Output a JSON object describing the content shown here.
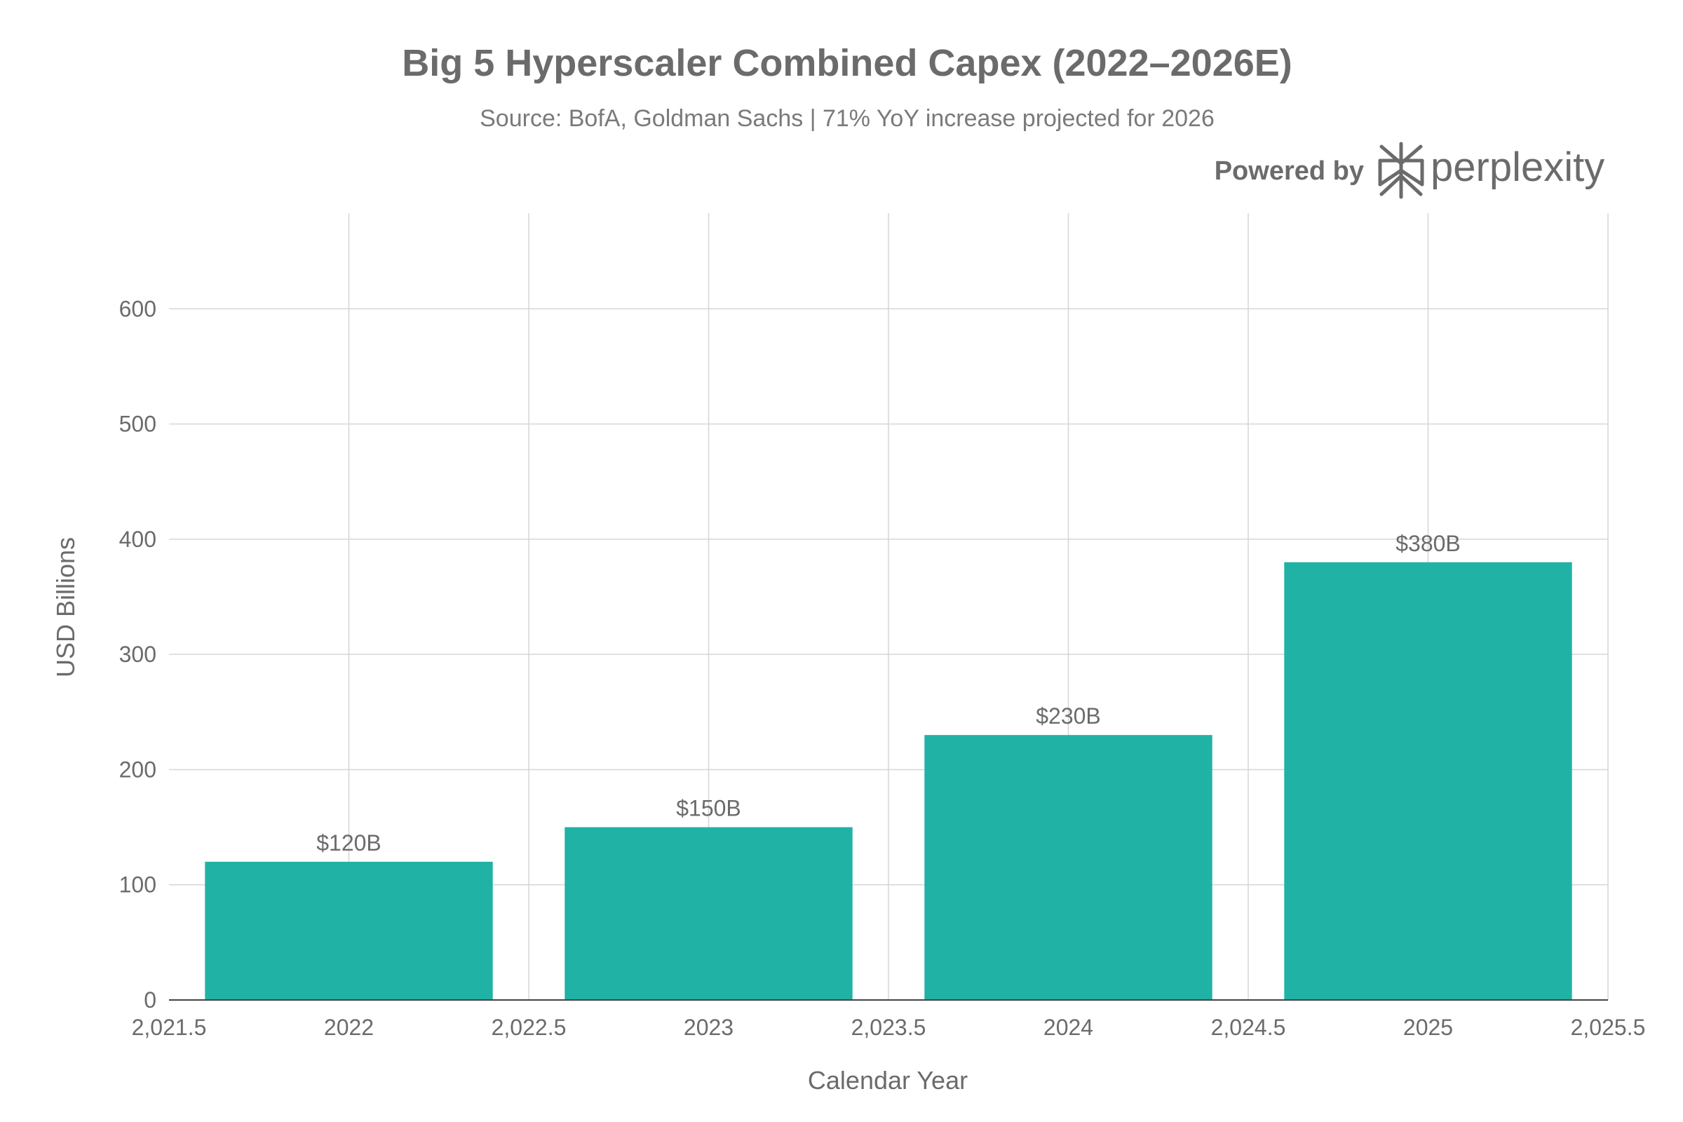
{
  "chart_data": {
    "type": "bar",
    "title": "Big 5 Hyperscaler Combined Capex (2022–2026E)",
    "subtitle": "Source: BofA, Goldman Sachs | 71% YoY increase projected for 2026",
    "xlabel": "Calendar Year",
    "ylabel": "USD Billions",
    "x": [
      2022,
      2023,
      2024,
      2025
    ],
    "values": [
      120,
      150,
      230,
      380
    ],
    "data_labels": [
      "$120B",
      "$150B",
      "$230B",
      "$380B"
    ],
    "xlim": [
      2021.5,
      2025.5
    ],
    "ylim": [
      0,
      683
    ],
    "x_ticks": [
      {
        "value": 2021.5,
        "label": "2,021.5"
      },
      {
        "value": 2022,
        "label": "2022"
      },
      {
        "value": 2022.5,
        "label": "2,022.5"
      },
      {
        "value": 2023,
        "label": "2023"
      },
      {
        "value": 2023.5,
        "label": "2,023.5"
      },
      {
        "value": 2024,
        "label": "2024"
      },
      {
        "value": 2024.5,
        "label": "2,024.5"
      },
      {
        "value": 2025,
        "label": "2025"
      },
      {
        "value": 2025.5,
        "label": "2,025.5"
      }
    ],
    "y_ticks": [
      {
        "value": 0,
        "label": "0"
      },
      {
        "value": 100,
        "label": "100"
      },
      {
        "value": 200,
        "label": "200"
      },
      {
        "value": 300,
        "label": "300"
      },
      {
        "value": 400,
        "label": "400"
      },
      {
        "value": 500,
        "label": "500"
      },
      {
        "value": 600,
        "label": "600"
      }
    ],
    "bar_width": 0.8,
    "grid": true,
    "bar_color": "#21B2A6"
  },
  "branding": {
    "powered_by": "Powered by",
    "brand_name": "perplexity",
    "icon": "perplexity-logo-icon"
  }
}
